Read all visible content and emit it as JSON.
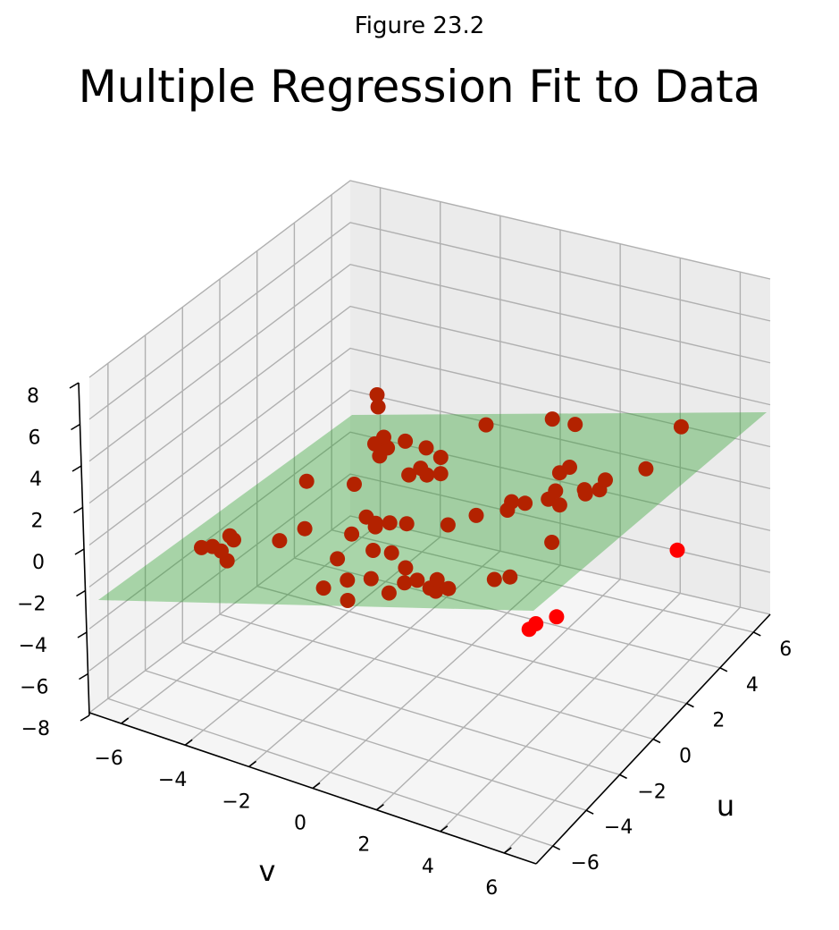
{
  "suptitle": "Figure 23.2",
  "chart_data": {
    "type": "scatter",
    "projection": "3d",
    "title": "Multiple Regression Fit to Data",
    "xlabel": "u",
    "ylabel": "v",
    "zlabel": "",
    "xlim": [
      -7,
      7
    ],
    "ylim": [
      -7,
      7
    ],
    "zlim": [
      -8,
      8
    ],
    "xticks": [
      -6,
      -4,
      -2,
      0,
      2,
      4,
      6
    ],
    "yticks": [
      -6,
      -4,
      -2,
      0,
      2,
      4,
      6
    ],
    "zticks": [
      -8,
      -6,
      -4,
      -2,
      0,
      2,
      4,
      6,
      8
    ],
    "grid": true,
    "colors": {
      "points": "#b32200",
      "points_below_plane": "#ff0000",
      "plane": "#2ca02c",
      "pane": "#f2f2f2",
      "grid": "#b0b0b0"
    },
    "plane": {
      "description": "fitted regression plane",
      "u_range": [
        -7,
        7
      ],
      "v_range": [
        -7,
        7
      ],
      "z_range_approx": [
        -2,
        1.5
      ]
    },
    "points": [
      {
        "u": 1.5,
        "v": -6.5,
        "z": 1.0
      },
      {
        "u": 0.8,
        "v": -6.6,
        "z": 0.0
      },
      {
        "u": 1.8,
        "v": -6.0,
        "z": 0.0
      },
      {
        "u": 2.3,
        "v": -6.0,
        "z": 0.5
      },
      {
        "u": 2.6,
        "v": -5.8,
        "z": 0.5
      },
      {
        "u": 2.9,
        "v": -5.6,
        "z": 0.0
      },
      {
        "u": 3.2,
        "v": -5.8,
        "z": 0.0
      },
      {
        "u": -0.2,
        "v": -6.2,
        "z": 0.3
      },
      {
        "u": 0.4,
        "v": -5.9,
        "z": 0.5
      },
      {
        "u": 3.5,
        "v": -5.6,
        "z": 0.0
      },
      {
        "u": 2.8,
        "v": -5.0,
        "z": 0.0
      },
      {
        "u": 1.5,
        "v": -4.5,
        "z": 0.2
      },
      {
        "u": -0.6,
        "v": -4.7,
        "z": 0.7
      },
      {
        "u": 4.6,
        "v": -4.9,
        "z": 0.0
      },
      {
        "u": 5.0,
        "v": -4.7,
        "z": 0.0
      },
      {
        "u": 6.0,
        "v": -5.4,
        "z": -2.0
      },
      {
        "u": 6.0,
        "v": -5.0,
        "z": -2.0
      },
      {
        "u": 6.4,
        "v": -4.5,
        "z": -2.0
      },
      {
        "u": -4.0,
        "v": -5.0,
        "z": 0.7
      },
      {
        "u": -4.6,
        "v": -4.3,
        "z": 0.7
      },
      {
        "u": -0.4,
        "v": -3.0,
        "z": 0.0
      },
      {
        "u": 0.2,
        "v": -3.0,
        "z": -0.1
      },
      {
        "u": 4.6,
        "v": -1.5,
        "z": -0.5
      },
      {
        "u": -1.5,
        "v": -2.3,
        "z": 0.3
      },
      {
        "u": -1.0,
        "v": -1.8,
        "z": 0.5
      },
      {
        "u": -6.0,
        "v": -3.0,
        "z": 0.0
      },
      {
        "u": -5.7,
        "v": -2.9,
        "z": 0.0
      },
      {
        "u": -5.3,
        "v": -2.4,
        "z": 0.0
      },
      {
        "u": -5.6,
        "v": -2.1,
        "z": 0.0
      },
      {
        "u": -3.8,
        "v": -2.4,
        "z": 0.0
      },
      {
        "u": -3.5,
        "v": -1.5,
        "z": 0.0
      },
      {
        "u": -1.3,
        "v": -1.3,
        "z": 0.0
      },
      {
        "u": -1.0,
        "v": -1.0,
        "z": 0.0
      },
      {
        "u": -0.5,
        "v": -0.9,
        "z": -0.1
      },
      {
        "u": -2.0,
        "v": -0.6,
        "z": 0.0
      },
      {
        "u": 0.8,
        "v": -0.8,
        "z": -0.2
      },
      {
        "u": 1.5,
        "v": -0.4,
        "z": 0.0
      },
      {
        "u": 2.3,
        "v": 0.0,
        "z": 0.0
      },
      {
        "u": 2.6,
        "v": 0.5,
        "z": 0.0
      },
      {
        "u": 2.1,
        "v": 0.6,
        "z": 0.0
      },
      {
        "u": 3.2,
        "v": 0.8,
        "z": 0.0
      },
      {
        "u": 3.8,
        "v": 0.4,
        "z": 0.0
      },
      {
        "u": 3.1,
        "v": 1.4,
        "z": 0.0
      },
      {
        "u": 4.2,
        "v": 1.2,
        "z": 0.0
      },
      {
        "u": 4.5,
        "v": 1.5,
        "z": 0.0
      },
      {
        "u": 4.0,
        "v": 1.5,
        "z": 0.0
      },
      {
        "u": 4.3,
        "v": 2.2,
        "z": 0.0
      },
      {
        "u": 2.5,
        "v": 2.7,
        "z": 0.0
      },
      {
        "u": 2.6,
        "v": 3.1,
        "z": 0.0
      },
      {
        "u": 5.2,
        "v": 3.0,
        "z": 0.0
      },
      {
        "u": 6.8,
        "v": 2.0,
        "z": -3.2
      },
      {
        "u": -3.8,
        "v": 1.8,
        "z": 0.0
      },
      {
        "u": -2.4,
        "v": 2.5,
        "z": 0.0
      },
      {
        "u": -1.8,
        "v": 2.5,
        "z": 0.0
      },
      {
        "u": -1.4,
        "v": 2.6,
        "z": 0.0
      },
      {
        "u": -2.3,
        "v": 3.0,
        "z": 0.0
      },
      {
        "u": -5.5,
        "v": 2.0,
        "z": 0.0
      },
      {
        "u": -4.2,
        "v": 3.9,
        "z": 0.0
      },
      {
        "u": -4.3,
        "v": 4.5,
        "z": 0.0
      },
      {
        "u": -2.1,
        "v": 3.8,
        "z": 0.0
      },
      {
        "u": -4.9,
        "v": 5.3,
        "z": 0.0
      },
      {
        "u": -4.9,
        "v": 4.8,
        "z": 0.0
      },
      {
        "u": -4.0,
        "v": 5.0,
        "z": 0.0
      },
      {
        "u": -3.0,
        "v": 4.5,
        "z": 0.0
      },
      {
        "u": 0.0,
        "v": 6.6,
        "z": 0.0
      },
      {
        "u": 1.0,
        "v": 6.2,
        "z": 0.0
      },
      {
        "u": -2.0,
        "v": 6.2,
        "z": 0.0
      },
      {
        "u": -6.0,
        "v": 6.8,
        "z": 0.5
      },
      {
        "u": -6.4,
        "v": 7.4,
        "z": 0.7
      },
      {
        "u": 4.0,
        "v": 7.2,
        "z": -0.8
      }
    ]
  }
}
